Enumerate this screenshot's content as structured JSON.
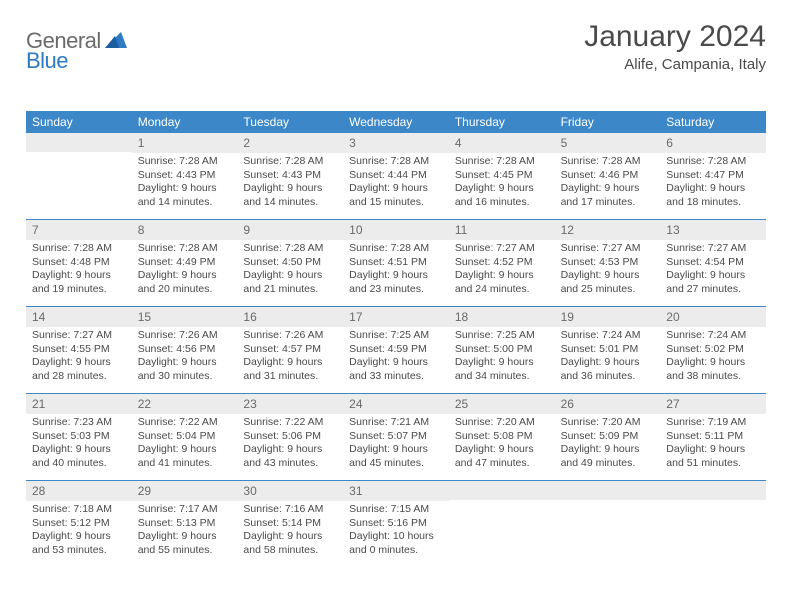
{
  "logo": {
    "text1": "General",
    "text2": "Blue"
  },
  "title": "January 2024",
  "location": "Alife, Campania, Italy",
  "colors": {
    "headerBg": "#3b87c8",
    "headerText": "#ffffff",
    "dayNumBg": "#ececec",
    "dayNumText": "#6a6a6a",
    "bodyText": "#4a4a4a",
    "ruleColor": "#3b87c8"
  },
  "dayNames": [
    "Sunday",
    "Monday",
    "Tuesday",
    "Wednesday",
    "Thursday",
    "Friday",
    "Saturday"
  ],
  "weeks": [
    [
      {
        "n": "",
        "sr": "",
        "ss": "",
        "dl1": "",
        "dl2": ""
      },
      {
        "n": "1",
        "sr": "Sunrise: 7:28 AM",
        "ss": "Sunset: 4:43 PM",
        "dl1": "Daylight: 9 hours",
        "dl2": "and 14 minutes."
      },
      {
        "n": "2",
        "sr": "Sunrise: 7:28 AM",
        "ss": "Sunset: 4:43 PM",
        "dl1": "Daylight: 9 hours",
        "dl2": "and 14 minutes."
      },
      {
        "n": "3",
        "sr": "Sunrise: 7:28 AM",
        "ss": "Sunset: 4:44 PM",
        "dl1": "Daylight: 9 hours",
        "dl2": "and 15 minutes."
      },
      {
        "n": "4",
        "sr": "Sunrise: 7:28 AM",
        "ss": "Sunset: 4:45 PM",
        "dl1": "Daylight: 9 hours",
        "dl2": "and 16 minutes."
      },
      {
        "n": "5",
        "sr": "Sunrise: 7:28 AM",
        "ss": "Sunset: 4:46 PM",
        "dl1": "Daylight: 9 hours",
        "dl2": "and 17 minutes."
      },
      {
        "n": "6",
        "sr": "Sunrise: 7:28 AM",
        "ss": "Sunset: 4:47 PM",
        "dl1": "Daylight: 9 hours",
        "dl2": "and 18 minutes."
      }
    ],
    [
      {
        "n": "7",
        "sr": "Sunrise: 7:28 AM",
        "ss": "Sunset: 4:48 PM",
        "dl1": "Daylight: 9 hours",
        "dl2": "and 19 minutes."
      },
      {
        "n": "8",
        "sr": "Sunrise: 7:28 AM",
        "ss": "Sunset: 4:49 PM",
        "dl1": "Daylight: 9 hours",
        "dl2": "and 20 minutes."
      },
      {
        "n": "9",
        "sr": "Sunrise: 7:28 AM",
        "ss": "Sunset: 4:50 PM",
        "dl1": "Daylight: 9 hours",
        "dl2": "and 21 minutes."
      },
      {
        "n": "10",
        "sr": "Sunrise: 7:28 AM",
        "ss": "Sunset: 4:51 PM",
        "dl1": "Daylight: 9 hours",
        "dl2": "and 23 minutes."
      },
      {
        "n": "11",
        "sr": "Sunrise: 7:27 AM",
        "ss": "Sunset: 4:52 PM",
        "dl1": "Daylight: 9 hours",
        "dl2": "and 24 minutes."
      },
      {
        "n": "12",
        "sr": "Sunrise: 7:27 AM",
        "ss": "Sunset: 4:53 PM",
        "dl1": "Daylight: 9 hours",
        "dl2": "and 25 minutes."
      },
      {
        "n": "13",
        "sr": "Sunrise: 7:27 AM",
        "ss": "Sunset: 4:54 PM",
        "dl1": "Daylight: 9 hours",
        "dl2": "and 27 minutes."
      }
    ],
    [
      {
        "n": "14",
        "sr": "Sunrise: 7:27 AM",
        "ss": "Sunset: 4:55 PM",
        "dl1": "Daylight: 9 hours",
        "dl2": "and 28 minutes."
      },
      {
        "n": "15",
        "sr": "Sunrise: 7:26 AM",
        "ss": "Sunset: 4:56 PM",
        "dl1": "Daylight: 9 hours",
        "dl2": "and 30 minutes."
      },
      {
        "n": "16",
        "sr": "Sunrise: 7:26 AM",
        "ss": "Sunset: 4:57 PM",
        "dl1": "Daylight: 9 hours",
        "dl2": "and 31 minutes."
      },
      {
        "n": "17",
        "sr": "Sunrise: 7:25 AM",
        "ss": "Sunset: 4:59 PM",
        "dl1": "Daylight: 9 hours",
        "dl2": "and 33 minutes."
      },
      {
        "n": "18",
        "sr": "Sunrise: 7:25 AM",
        "ss": "Sunset: 5:00 PM",
        "dl1": "Daylight: 9 hours",
        "dl2": "and 34 minutes."
      },
      {
        "n": "19",
        "sr": "Sunrise: 7:24 AM",
        "ss": "Sunset: 5:01 PM",
        "dl1": "Daylight: 9 hours",
        "dl2": "and 36 minutes."
      },
      {
        "n": "20",
        "sr": "Sunrise: 7:24 AM",
        "ss": "Sunset: 5:02 PM",
        "dl1": "Daylight: 9 hours",
        "dl2": "and 38 minutes."
      }
    ],
    [
      {
        "n": "21",
        "sr": "Sunrise: 7:23 AM",
        "ss": "Sunset: 5:03 PM",
        "dl1": "Daylight: 9 hours",
        "dl2": "and 40 minutes."
      },
      {
        "n": "22",
        "sr": "Sunrise: 7:22 AM",
        "ss": "Sunset: 5:04 PM",
        "dl1": "Daylight: 9 hours",
        "dl2": "and 41 minutes."
      },
      {
        "n": "23",
        "sr": "Sunrise: 7:22 AM",
        "ss": "Sunset: 5:06 PM",
        "dl1": "Daylight: 9 hours",
        "dl2": "and 43 minutes."
      },
      {
        "n": "24",
        "sr": "Sunrise: 7:21 AM",
        "ss": "Sunset: 5:07 PM",
        "dl1": "Daylight: 9 hours",
        "dl2": "and 45 minutes."
      },
      {
        "n": "25",
        "sr": "Sunrise: 7:20 AM",
        "ss": "Sunset: 5:08 PM",
        "dl1": "Daylight: 9 hours",
        "dl2": "and 47 minutes."
      },
      {
        "n": "26",
        "sr": "Sunrise: 7:20 AM",
        "ss": "Sunset: 5:09 PM",
        "dl1": "Daylight: 9 hours",
        "dl2": "and 49 minutes."
      },
      {
        "n": "27",
        "sr": "Sunrise: 7:19 AM",
        "ss": "Sunset: 5:11 PM",
        "dl1": "Daylight: 9 hours",
        "dl2": "and 51 minutes."
      }
    ],
    [
      {
        "n": "28",
        "sr": "Sunrise: 7:18 AM",
        "ss": "Sunset: 5:12 PM",
        "dl1": "Daylight: 9 hours",
        "dl2": "and 53 minutes."
      },
      {
        "n": "29",
        "sr": "Sunrise: 7:17 AM",
        "ss": "Sunset: 5:13 PM",
        "dl1": "Daylight: 9 hours",
        "dl2": "and 55 minutes."
      },
      {
        "n": "30",
        "sr": "Sunrise: 7:16 AM",
        "ss": "Sunset: 5:14 PM",
        "dl1": "Daylight: 9 hours",
        "dl2": "and 58 minutes."
      },
      {
        "n": "31",
        "sr": "Sunrise: 7:15 AM",
        "ss": "Sunset: 5:16 PM",
        "dl1": "Daylight: 10 hours",
        "dl2": "and 0 minutes."
      },
      {
        "n": "",
        "sr": "",
        "ss": "",
        "dl1": "",
        "dl2": ""
      },
      {
        "n": "",
        "sr": "",
        "ss": "",
        "dl1": "",
        "dl2": ""
      },
      {
        "n": "",
        "sr": "",
        "ss": "",
        "dl1": "",
        "dl2": ""
      }
    ]
  ]
}
